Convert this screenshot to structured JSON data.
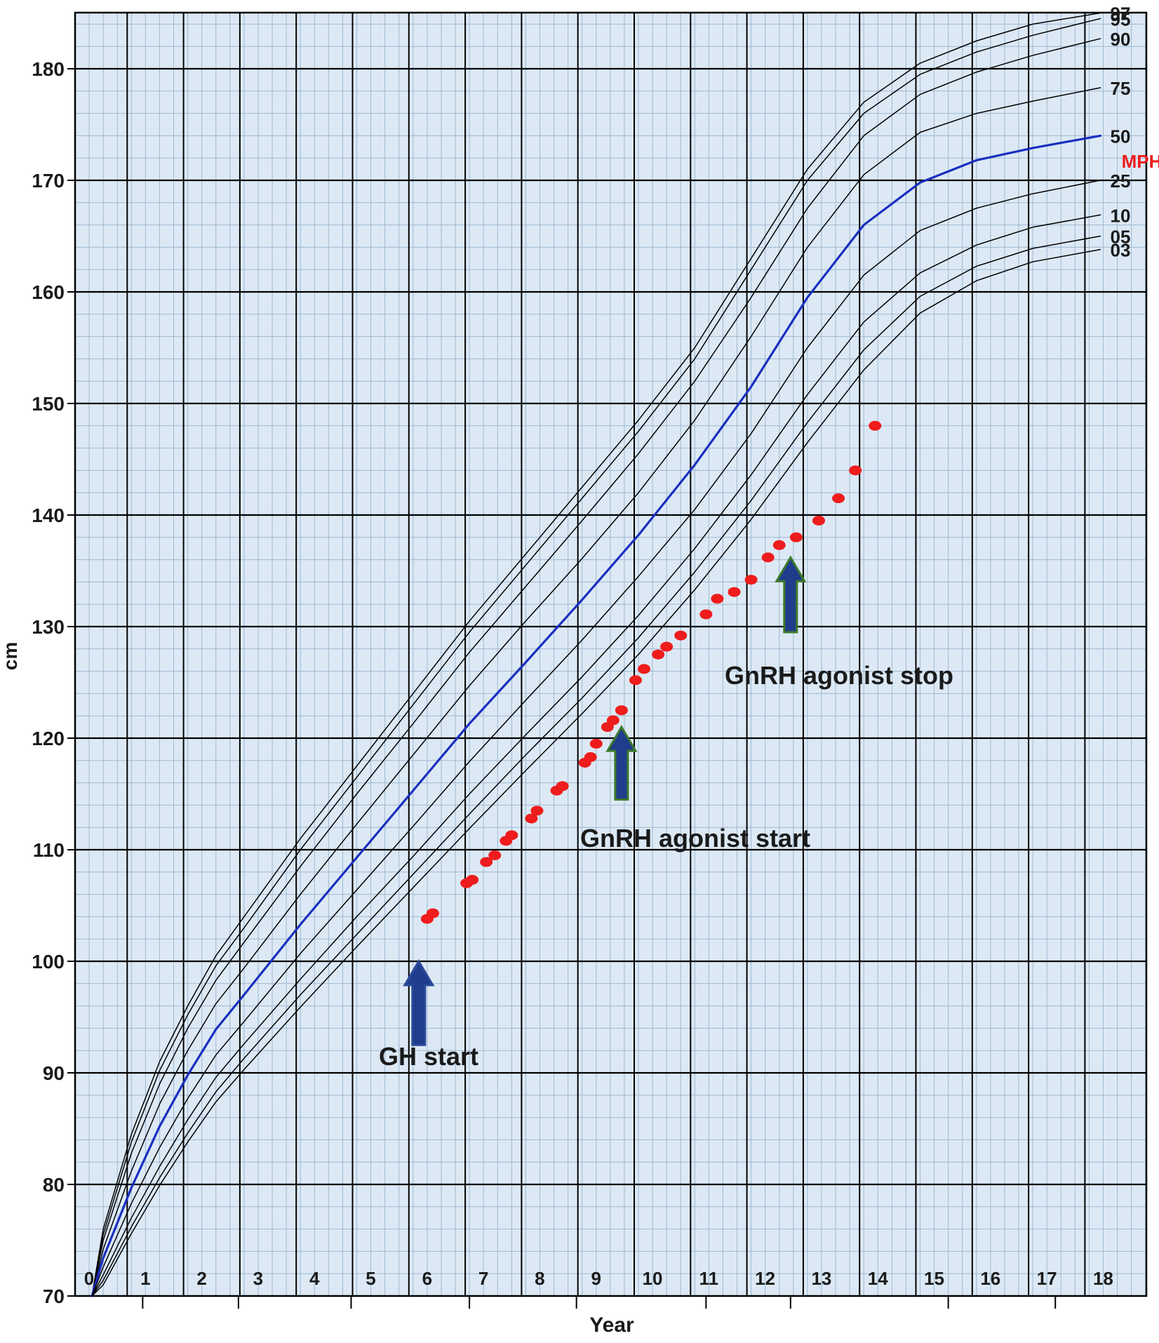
{
  "chart_data": {
    "type": "line",
    "title": "",
    "xlabel": "Year",
    "ylabel": "cm",
    "xlim": [
      0,
      19
    ],
    "ylim": [
      70,
      185
    ],
    "x_tick_labels": [
      "0",
      "1",
      "2",
      "3",
      "4",
      "5",
      "6",
      "7",
      "8",
      "9",
      "10",
      "11",
      "12",
      "13",
      "14",
      "15",
      "16",
      "17",
      "18"
    ],
    "y_tick_labels": [
      "70",
      "80",
      "90",
      "100",
      "110",
      "120",
      "130",
      "140",
      "150",
      "160",
      "170",
      "180"
    ],
    "grid": true,
    "colors": {
      "plot_background": "#dce9f5",
      "major_grid": "#000000",
      "minor_grid": "#9fb8cf",
      "percentile_line": "#000000",
      "median_line": "#1a2fc0",
      "patient_points": "#ee1c1c",
      "arrow_navy": "#1f3d8c",
      "arrow_green_border": "#3d7a2a"
    },
    "series": [
      {
        "name": "97",
        "x": [
          0.3,
          0.5,
          1,
          1.5,
          2,
          2.5,
          3,
          4,
          5,
          6,
          7,
          8,
          9,
          10,
          11,
          12,
          13,
          14,
          15,
          16,
          17,
          18.2
        ],
        "values": [
          70,
          76,
          84.5,
          91,
          96,
          100.5,
          104,
          111,
          117.5,
          124,
          130.5,
          136.5,
          142.5,
          148.5,
          155,
          163,
          171,
          177,
          180.5,
          182.5,
          184,
          185
        ]
      },
      {
        "name": "95",
        "x": [
          0.3,
          0.5,
          1,
          1.5,
          2,
          2.5,
          3,
          4,
          5,
          6,
          7,
          8,
          9,
          10,
          11,
          12,
          13,
          14,
          15,
          16,
          17,
          18.2
        ],
        "values": [
          70,
          75.5,
          83.8,
          90.2,
          95.2,
          99.6,
          103,
          110,
          116.5,
          123,
          129.5,
          135.5,
          141.5,
          147.5,
          154,
          162,
          170,
          176,
          179.5,
          181.5,
          183,
          184.5
        ]
      },
      {
        "name": "90",
        "x": [
          0.3,
          0.5,
          1,
          1.5,
          2,
          2.5,
          3,
          4,
          5,
          6,
          7,
          8,
          9,
          10,
          11,
          12,
          13,
          14,
          15,
          16,
          17,
          18.2
        ],
        "values": [
          70,
          75,
          82.8,
          89,
          94,
          98.3,
          101.7,
          108.5,
          115,
          121.3,
          127.7,
          133.6,
          139.5,
          145.5,
          152,
          159.5,
          167.5,
          174,
          177.7,
          179.7,
          181.2,
          182.7
        ]
      },
      {
        "name": "75",
        "x": [
          0.3,
          0.5,
          1,
          1.5,
          2,
          2.5,
          3,
          4,
          5,
          6,
          7,
          8,
          9,
          10,
          11,
          12,
          13,
          14,
          15,
          16,
          17,
          18.2
        ],
        "values": [
          70,
          74.2,
          81.2,
          87.2,
          92,
          96.2,
          99.4,
          106,
          112.3,
          118.5,
          124.7,
          130.5,
          136.1,
          142,
          148.5,
          156,
          164,
          170.5,
          174.3,
          176,
          177.1,
          178.3
        ]
      },
      {
        "name": "50",
        "x": [
          0.3,
          0.5,
          1,
          1.5,
          2,
          2.5,
          3,
          4,
          5,
          6,
          7,
          8,
          9,
          10,
          11,
          12,
          13,
          14,
          15,
          16,
          17,
          18.2
        ],
        "values": [
          70,
          73.4,
          79.7,
          85.2,
          89.8,
          93.9,
          97,
          103.3,
          109.3,
          115.3,
          121.3,
          126.8,
          132.4,
          138.2,
          144.5,
          151.5,
          159.5,
          166,
          169.8,
          171.8,
          172.9,
          174
        ]
      },
      {
        "name": "25",
        "x": [
          0.3,
          0.5,
          1,
          1.5,
          2,
          2.5,
          3,
          4,
          5,
          6,
          7,
          8,
          9,
          10,
          11,
          12,
          13,
          14,
          15,
          16,
          17,
          18.2
        ],
        "values": [
          70,
          72.6,
          78.3,
          83.3,
          87.7,
          91.6,
          94.6,
          100.7,
          106.4,
          112.1,
          117.9,
          123.4,
          128.8,
          134.5,
          140.5,
          147.3,
          155,
          161.5,
          165.5,
          167.5,
          168.8,
          170
        ]
      },
      {
        "name": "10",
        "x": [
          0.3,
          0.5,
          1,
          1.5,
          2,
          2.5,
          3,
          4,
          5,
          6,
          7,
          8,
          9,
          10,
          11,
          12,
          13,
          14,
          15,
          16,
          17,
          18.2
        ],
        "values": [
          70,
          71.9,
          77,
          81.6,
          85.8,
          89.6,
          92.6,
          98.4,
          104,
          109.4,
          115,
          120.3,
          125.5,
          131,
          137,
          143.6,
          150.8,
          157.3,
          161.7,
          164.2,
          165.8,
          166.9
        ]
      },
      {
        "name": "05",
        "x": [
          0.3,
          0.5,
          1,
          1.5,
          2,
          2.5,
          3,
          4,
          5,
          6,
          7,
          8,
          9,
          10,
          11,
          12,
          13,
          14,
          15,
          16,
          17,
          18.2
        ],
        "values": [
          70,
          71.4,
          76.2,
          80.6,
          84.6,
          88.3,
          91.3,
          97,
          102.4,
          107.8,
          113.2,
          118.5,
          123.6,
          129,
          134.9,
          141.3,
          148.3,
          154.8,
          159.6,
          162.3,
          163.9,
          165
        ]
      },
      {
        "name": "03",
        "x": [
          0.3,
          0.5,
          1,
          1.5,
          2,
          2.5,
          3,
          4,
          5,
          6,
          7,
          8,
          9,
          10,
          11,
          12,
          13,
          14,
          15,
          16,
          17,
          18.2
        ],
        "values": [
          70,
          71,
          75.6,
          79.9,
          83.8,
          87.4,
          90.3,
          95.9,
          101.3,
          106.6,
          111.9,
          117.1,
          122.2,
          127.5,
          133.3,
          139.6,
          146.5,
          153,
          158.1,
          161,
          162.7,
          163.8
        ]
      }
    ],
    "patient_points": {
      "x": [
        6.25,
        6.35,
        6.95,
        7.05,
        7.3,
        7.45,
        7.65,
        7.75,
        8.1,
        8.2,
        8.55,
        8.65,
        9.05,
        9.15,
        9.25,
        9.45,
        9.55,
        9.7,
        9.95,
        10.1,
        10.35,
        10.5,
        10.75,
        11.2,
        11.4,
        11.7,
        12.0,
        12.3,
        12.5,
        12.8,
        13.2,
        13.55,
        13.85,
        14.2
      ],
      "values": [
        103.8,
        104.3,
        107,
        107.3,
        108.9,
        109.5,
        110.8,
        111.3,
        112.8,
        113.5,
        115.3,
        115.7,
        117.8,
        118.3,
        119.5,
        121,
        121.6,
        122.5,
        125.2,
        126.2,
        127.5,
        128.2,
        129.2,
        131.1,
        132.5,
        133.1,
        134.2,
        136.2,
        137.3,
        138,
        139.5,
        141.5,
        144,
        148
      ]
    },
    "mph": {
      "label": "MPH",
      "x": 18,
      "value": 171.7
    },
    "annotations": [
      {
        "text": "GH start",
        "arrow_x": 6.1,
        "arrow_from": 92.5,
        "arrow_to": 100
      },
      {
        "text": "GnRH agonist start",
        "arrow_x": 9.7,
        "arrow_from": 114.5,
        "arrow_to": 121
      },
      {
        "text": "GnRH agonist stop",
        "arrow_x": 12.7,
        "arrow_from": 129.5,
        "arrow_to": 136.2
      }
    ]
  }
}
